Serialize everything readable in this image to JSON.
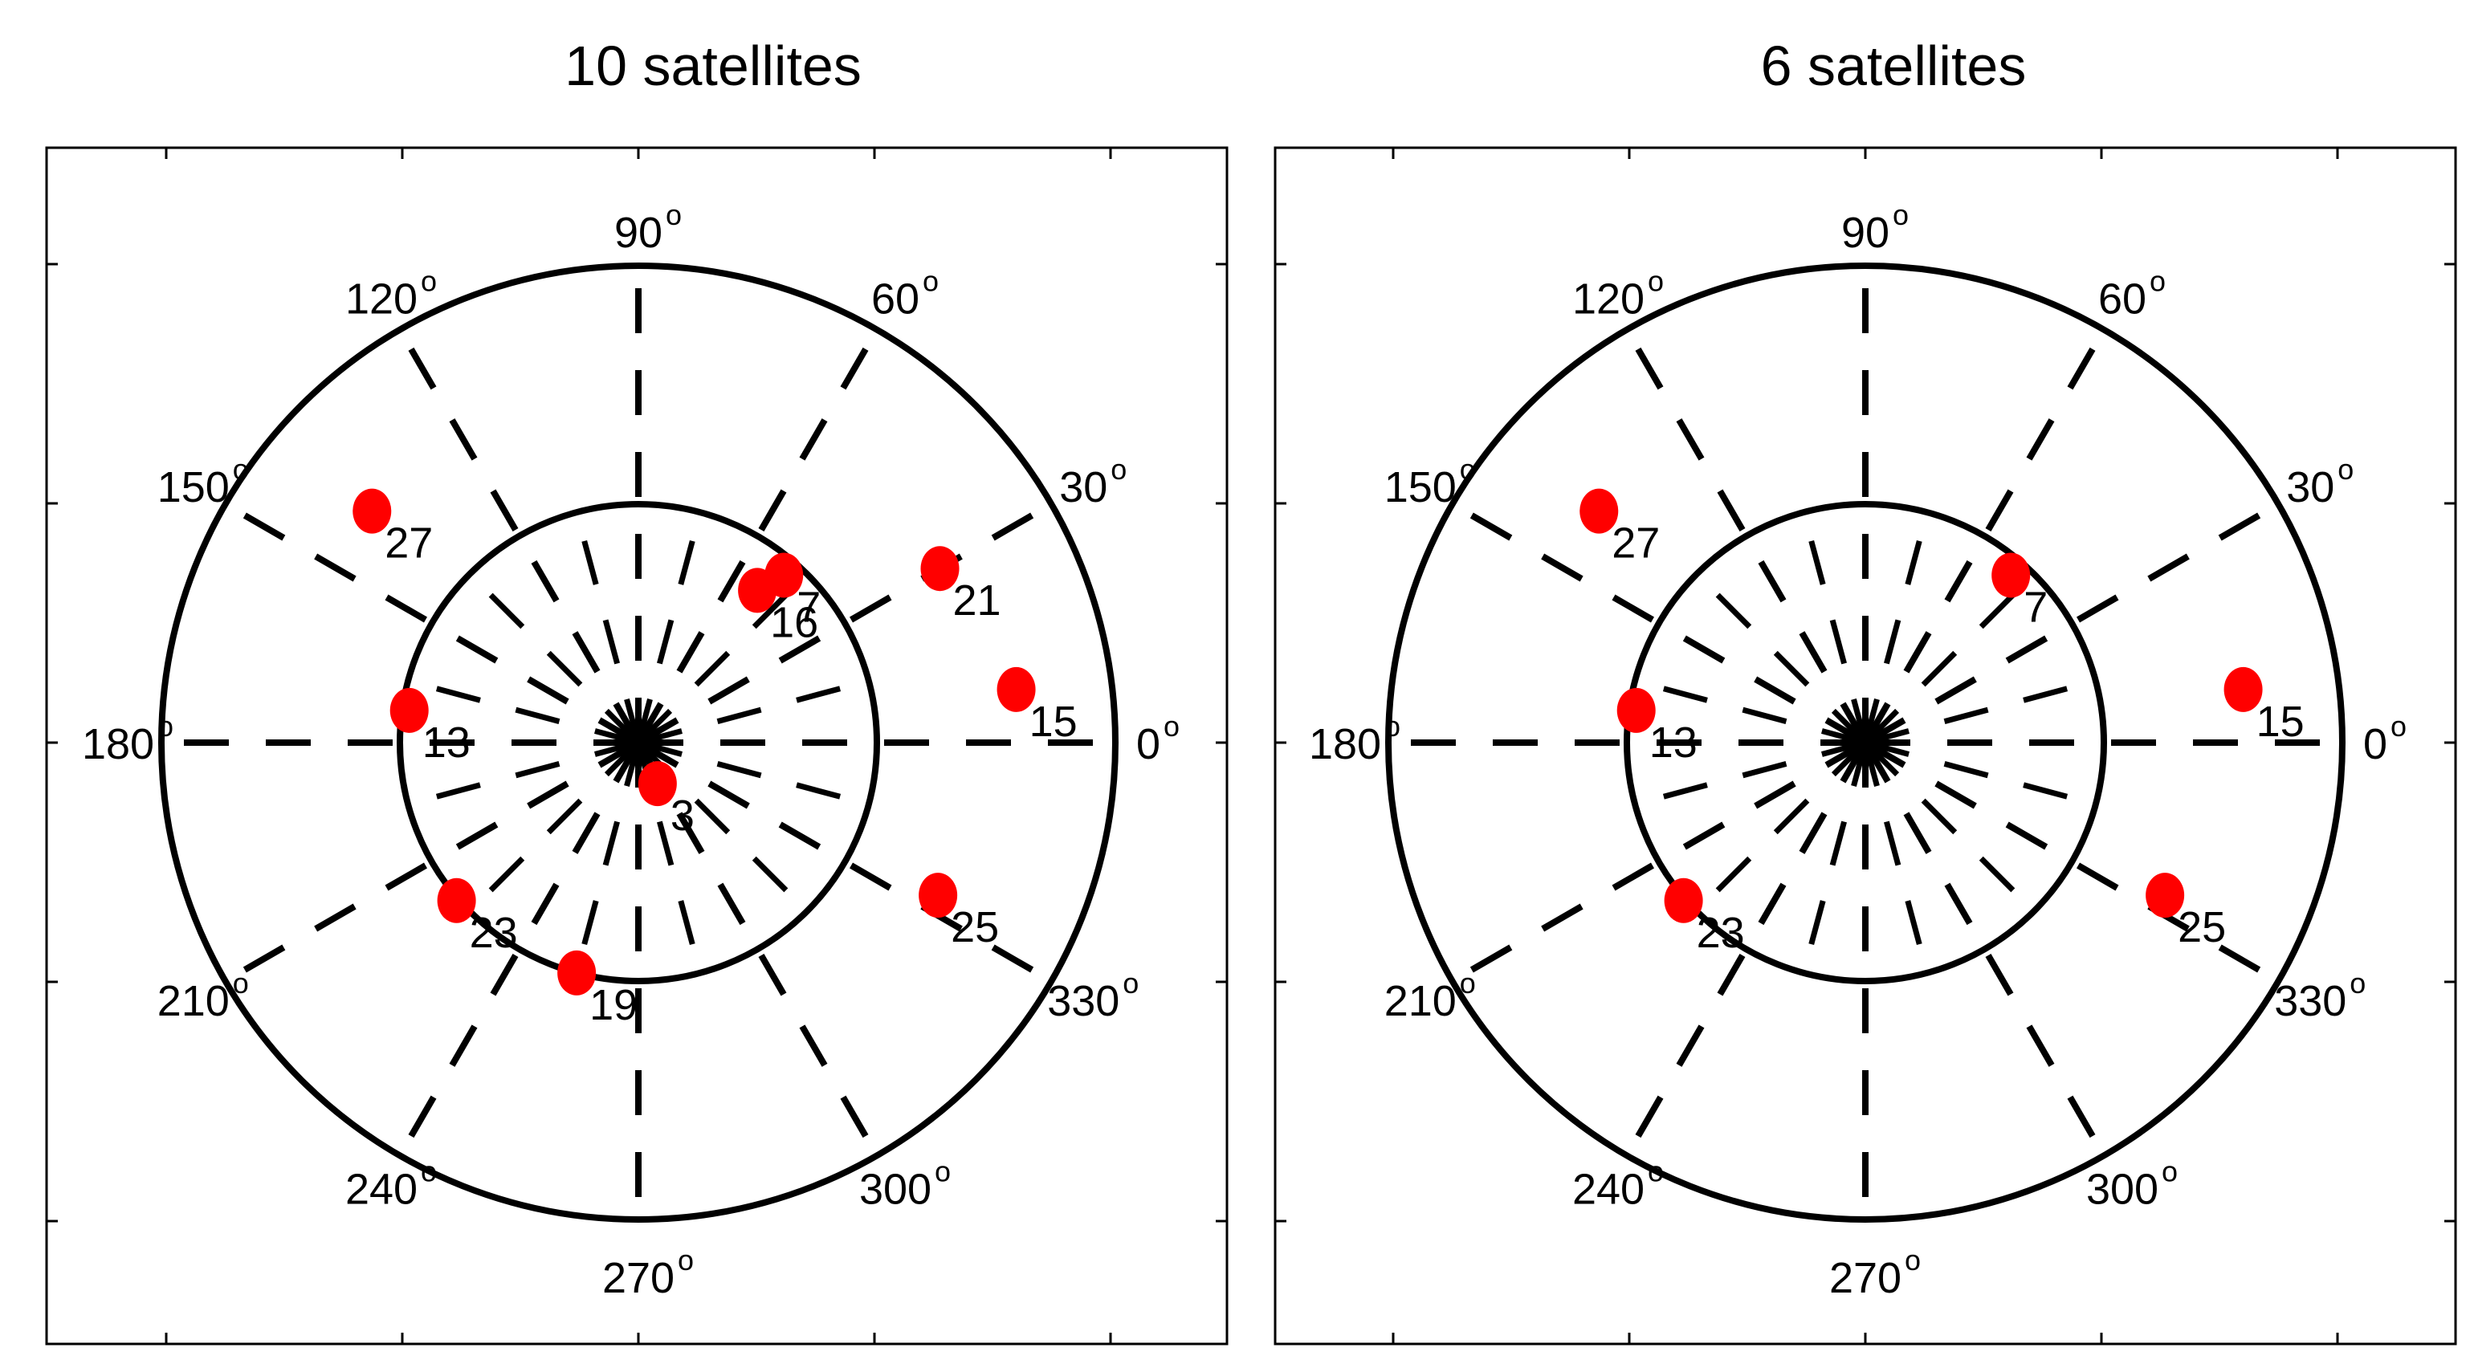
{
  "chart_data": [
    {
      "type": "scatter",
      "subtype": "polar-skyplot",
      "title": "10 satellites",
      "angle_labels": [
        "0",
        "30",
        "60",
        "90",
        "120",
        "150",
        "180",
        "210",
        "240",
        "270",
        "300",
        "330"
      ],
      "angle_unit_mark": "o",
      "rings": 2,
      "satellites": [
        {
          "id": "27",
          "az": 139,
          "r": 1.48
        },
        {
          "id": "21",
          "az": 30,
          "r": 1.46
        },
        {
          "id": "7",
          "az": 49,
          "r": 0.93
        },
        {
          "id": "16",
          "az": 52,
          "r": 0.81
        },
        {
          "id": "15",
          "az": 8,
          "r": 1.6
        },
        {
          "id": "13",
          "az": 172,
          "r": 0.97
        },
        {
          "id": "3",
          "az": 295,
          "r": 0.19
        },
        {
          "id": "23",
          "az": 221,
          "r": 1.01
        },
        {
          "id": "19",
          "az": 255,
          "r": 1.0
        },
        {
          "id": "25",
          "az": 333,
          "r": 1.41
        }
      ]
    },
    {
      "type": "scatter",
      "subtype": "polar-skyplot",
      "title": "6 satellites",
      "angle_labels": [
        "0",
        "30",
        "60",
        "90",
        "120",
        "150",
        "180",
        "210",
        "240",
        "270",
        "300",
        "330"
      ],
      "angle_unit_mark": "o",
      "rings": 2,
      "satellites": [
        {
          "id": "27",
          "az": 139,
          "r": 1.48
        },
        {
          "id": "7",
          "az": 49,
          "r": 0.93
        },
        {
          "id": "15",
          "az": 8,
          "r": 1.6
        },
        {
          "id": "13",
          "az": 172,
          "r": 0.97
        },
        {
          "id": "23",
          "az": 221,
          "r": 1.01
        },
        {
          "id": "25",
          "az": 333,
          "r": 1.41
        }
      ]
    }
  ],
  "colors": {
    "marker": "#ff0000",
    "grid": "#000000",
    "background": "#ffffff"
  }
}
